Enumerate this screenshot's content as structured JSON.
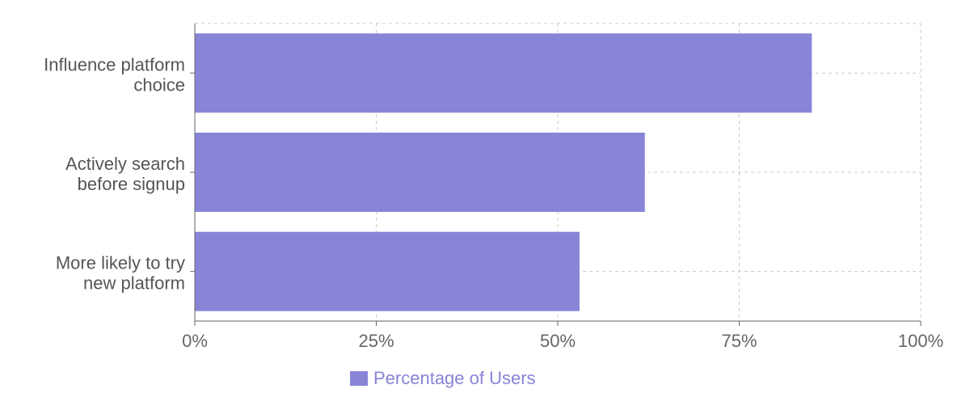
{
  "chart_data": {
    "type": "bar",
    "orientation": "horizontal",
    "categories": [
      [
        "Influence platform",
        "choice"
      ],
      [
        "Actively search",
        "before signup"
      ],
      [
        "More likely to try",
        "new platform"
      ]
    ],
    "series": [
      {
        "name": "Percentage of Users",
        "values": [
          85,
          62,
          53
        ]
      }
    ],
    "xlim": [
      0,
      100
    ],
    "xticks": [
      0,
      25,
      50,
      75,
      100
    ],
    "xtick_labels": [
      "0%",
      "25%",
      "50%",
      "75%",
      "100%"
    ],
    "grid": true,
    "legend_position": "bottom",
    "colors": {
      "bar": "#8884d6",
      "legend_text": "#8884d6",
      "grid": "#cccccc",
      "axis": "#666666"
    }
  }
}
